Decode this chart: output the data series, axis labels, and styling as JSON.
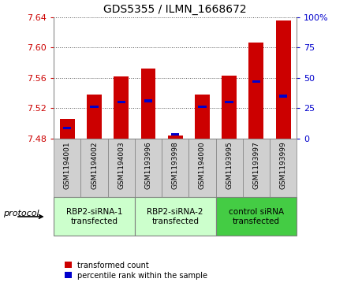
{
  "title": "GDS5355 / ILMN_1668672",
  "samples": [
    "GSM1194001",
    "GSM1194002",
    "GSM1194003",
    "GSM1193996",
    "GSM1193998",
    "GSM1194000",
    "GSM1193995",
    "GSM1193997",
    "GSM1193999"
  ],
  "red_values": [
    7.506,
    7.538,
    7.562,
    7.572,
    7.484,
    7.538,
    7.563,
    7.607,
    7.636
  ],
  "blue_values": [
    7.494,
    7.522,
    7.528,
    7.53,
    7.486,
    7.522,
    7.528,
    7.555,
    7.536
  ],
  "ylim_left": [
    7.48,
    7.64
  ],
  "ylim_right": [
    0,
    100
  ],
  "yticks_left": [
    7.48,
    7.52,
    7.56,
    7.6,
    7.64
  ],
  "yticks_right": [
    0,
    25,
    50,
    75,
    100
  ],
  "bar_bottom": 7.48,
  "groups": [
    {
      "label": "RBP2-siRNA-1\ntransfected",
      "indices": [
        0,
        1,
        2
      ],
      "color": "#ccffcc"
    },
    {
      "label": "RBP2-siRNA-2\ntransfected",
      "indices": [
        3,
        4,
        5
      ],
      "color": "#ccffcc"
    },
    {
      "label": "control siRNA\ntransfected",
      "indices": [
        6,
        7,
        8
      ],
      "color": "#44cc44"
    }
  ],
  "red_color": "#cc0000",
  "blue_color": "#0000cc",
  "bar_width": 0.55,
  "legend_red": "transformed count",
  "legend_blue": "percentile rank within the sample",
  "protocol_label": "protocol",
  "tick_color_left": "#cc0000",
  "tick_color_right": "#0000cc",
  "grid_color": "#555555",
  "group_colors": [
    "#ccffcc",
    "#ccffcc",
    "#44cc44"
  ],
  "sample_box_color": "#d0d0d0",
  "spine_color": "#888888"
}
